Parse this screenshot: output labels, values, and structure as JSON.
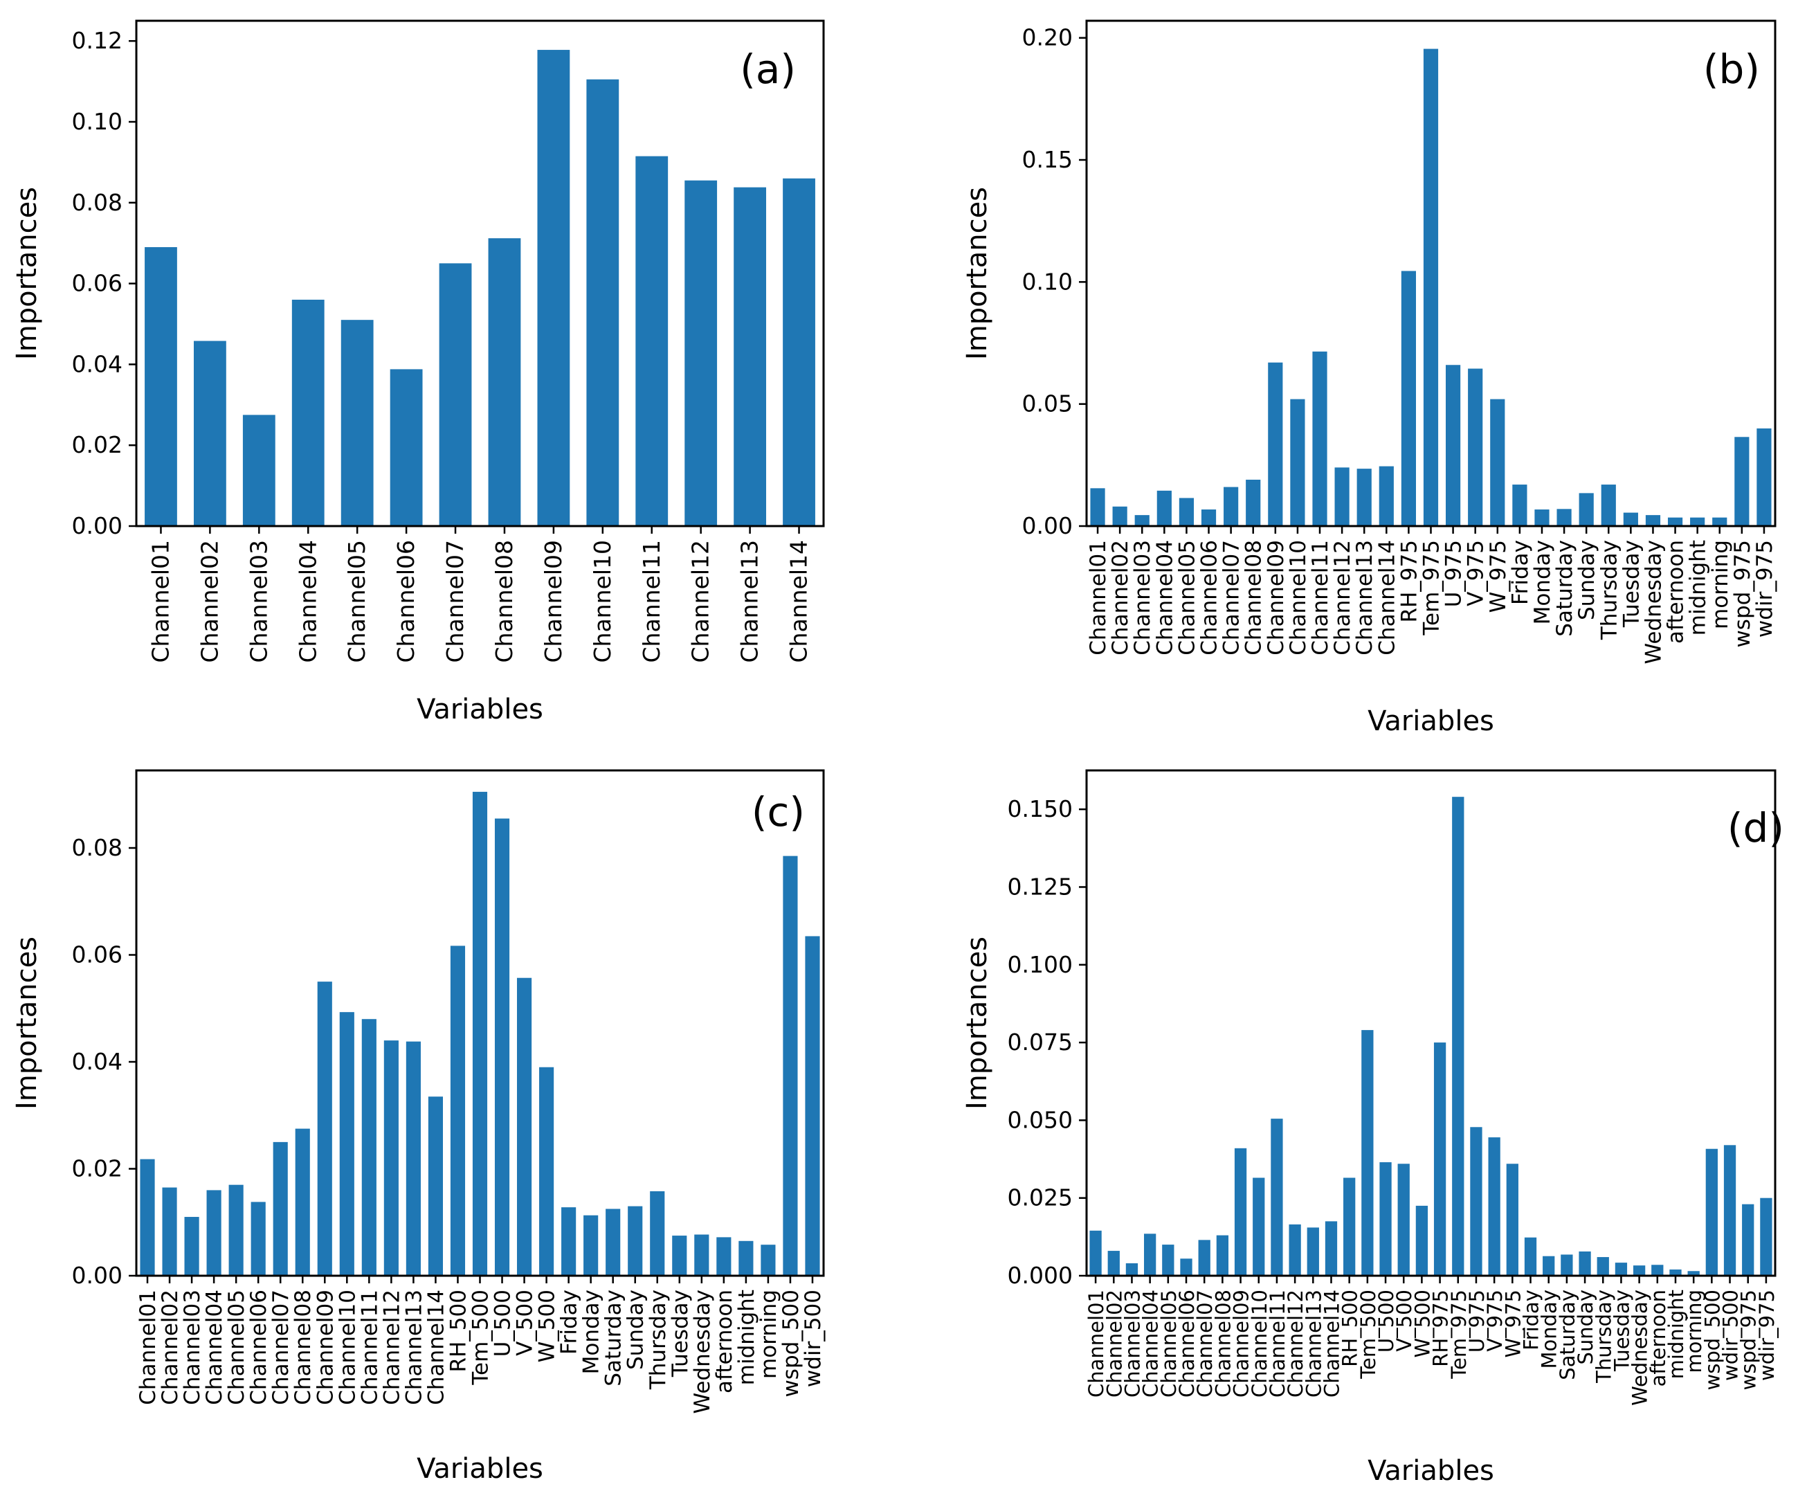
{
  "colors": {
    "bar": "#1f77b4",
    "axes": "#000000",
    "background": "#ffffff"
  },
  "chart_data": [
    {
      "type": "bar",
      "panel_label": "(a)",
      "xlabel": "Variables",
      "ylabel": "Importances",
      "ylim": [
        0,
        0.125
      ],
      "yticks": [
        0.0,
        0.02,
        0.04,
        0.06,
        0.08,
        0.1,
        0.12
      ],
      "ytick_labels": [
        "0.00",
        "0.02",
        "0.04",
        "0.06",
        "0.08",
        "0.10",
        "0.12"
      ],
      "categories": [
        "Channel01",
        "Channel02",
        "Channel03",
        "Channel04",
        "Channel05",
        "Channel06",
        "Channel07",
        "Channel08",
        "Channel09",
        "Channel10",
        "Channel11",
        "Channel12",
        "Channel13",
        "Channel14"
      ],
      "values": [
        0.069,
        0.0458,
        0.0275,
        0.056,
        0.051,
        0.0388,
        0.065,
        0.0712,
        0.1178,
        0.1105,
        0.0915,
        0.0855,
        0.0838,
        0.086
      ]
    },
    {
      "type": "bar",
      "panel_label": "(b)",
      "xlabel": "Variables",
      "ylabel": "Importances",
      "ylim": [
        0,
        0.207
      ],
      "yticks": [
        0.0,
        0.05,
        0.1,
        0.15,
        0.2
      ],
      "ytick_labels": [
        "0.00",
        "0.05",
        "0.10",
        "0.15",
        "0.20"
      ],
      "categories": [
        "Channel01",
        "Channel02",
        "Channel03",
        "Channel04",
        "Channel05",
        "Channel06",
        "Channel07",
        "Channel08",
        "Channel09",
        "Channel10",
        "Channel11",
        "Channel12",
        "Channel13",
        "Channel14",
        "RH_975",
        "Tem_975",
        "U_975",
        "V_975",
        "W_975",
        "Friday",
        "Monday",
        "Saturday",
        "Sunday",
        "Thursday",
        "Tuesday",
        "Wednesday",
        "afternoon",
        "midnight",
        "morning",
        "wspd_975",
        "wdir_975"
      ],
      "values": [
        0.0155,
        0.008,
        0.0045,
        0.0145,
        0.0115,
        0.0068,
        0.016,
        0.019,
        0.067,
        0.052,
        0.0715,
        0.024,
        0.0235,
        0.0245,
        0.1045,
        0.1955,
        0.066,
        0.0645,
        0.052,
        0.017,
        0.0068,
        0.007,
        0.0135,
        0.017,
        0.0055,
        0.0045,
        0.0035,
        0.0035,
        0.0035,
        0.0365,
        0.04
      ]
    },
    {
      "type": "bar",
      "panel_label": "(c)",
      "xlabel": "Variables",
      "ylabel": "Importances",
      "ylim": [
        0,
        0.0945
      ],
      "yticks": [
        0.0,
        0.02,
        0.04,
        0.06,
        0.08
      ],
      "ytick_labels": [
        "0.00",
        "0.02",
        "0.04",
        "0.06",
        "0.08"
      ],
      "categories": [
        "Channel01",
        "Channel02",
        "Channel03",
        "Channel04",
        "Channel05",
        "Channel06",
        "Channel07",
        "Channel08",
        "Channel09",
        "Channel10",
        "Channel11",
        "Channel12",
        "Channel13",
        "Channel14",
        "RH_500",
        "Tem_500",
        "U_500",
        "V_500",
        "W_500",
        "Friday",
        "Monday",
        "Saturday",
        "Sunday",
        "Thursday",
        "Tuesday",
        "Wednesday",
        "afternoon",
        "midnight",
        "morning",
        "wspd_500",
        "wdir_500"
      ],
      "values": [
        0.0218,
        0.0165,
        0.011,
        0.016,
        0.017,
        0.0138,
        0.025,
        0.0275,
        0.055,
        0.0493,
        0.048,
        0.044,
        0.0438,
        0.0335,
        0.0617,
        0.0905,
        0.0855,
        0.0557,
        0.039,
        0.0128,
        0.0113,
        0.0125,
        0.013,
        0.0158,
        0.0075,
        0.0077,
        0.0072,
        0.0065,
        0.0058,
        0.0785,
        0.0635
      ]
    },
    {
      "type": "bar",
      "panel_label": "(d)",
      "xlabel": "Variables",
      "ylabel": "Importances",
      "ylim": [
        0,
        0.1625
      ],
      "yticks": [
        0.0,
        0.025,
        0.05,
        0.075,
        0.1,
        0.125,
        0.15
      ],
      "ytick_labels": [
        "0.000",
        "0.025",
        "0.050",
        "0.075",
        "0.100",
        "0.125",
        "0.150"
      ],
      "categories": [
        "Channel01",
        "Channel02",
        "Channel03",
        "Channel04",
        "Channel05",
        "Channel06",
        "Channel07",
        "Channel08",
        "Channel09",
        "Channel10",
        "Channel11",
        "Channel12",
        "Channel13",
        "Channel14",
        "RH_500",
        "Tem_500",
        "U_500",
        "V_500",
        "W_500",
        "RH_975",
        "Tem_975",
        "U_975",
        "V_975",
        "W_975",
        "Friday",
        "Monday",
        "Saturday",
        "Sunday",
        "Thursday",
        "Tuesday",
        "Wednesday",
        "afternoon",
        "midnight",
        "morning",
        "wspd_500",
        "wdir_500",
        "wspd_975",
        "wdir_975"
      ],
      "values": [
        0.0145,
        0.008,
        0.004,
        0.0135,
        0.01,
        0.0055,
        0.0115,
        0.013,
        0.041,
        0.0315,
        0.0505,
        0.0165,
        0.0155,
        0.0175,
        0.0315,
        0.079,
        0.0365,
        0.036,
        0.0225,
        0.075,
        0.154,
        0.0478,
        0.0445,
        0.036,
        0.0123,
        0.0063,
        0.0068,
        0.0078,
        0.006,
        0.0042,
        0.0033,
        0.0035,
        0.002,
        0.0015,
        0.0408,
        0.042,
        0.023,
        0.025
      ]
    }
  ]
}
